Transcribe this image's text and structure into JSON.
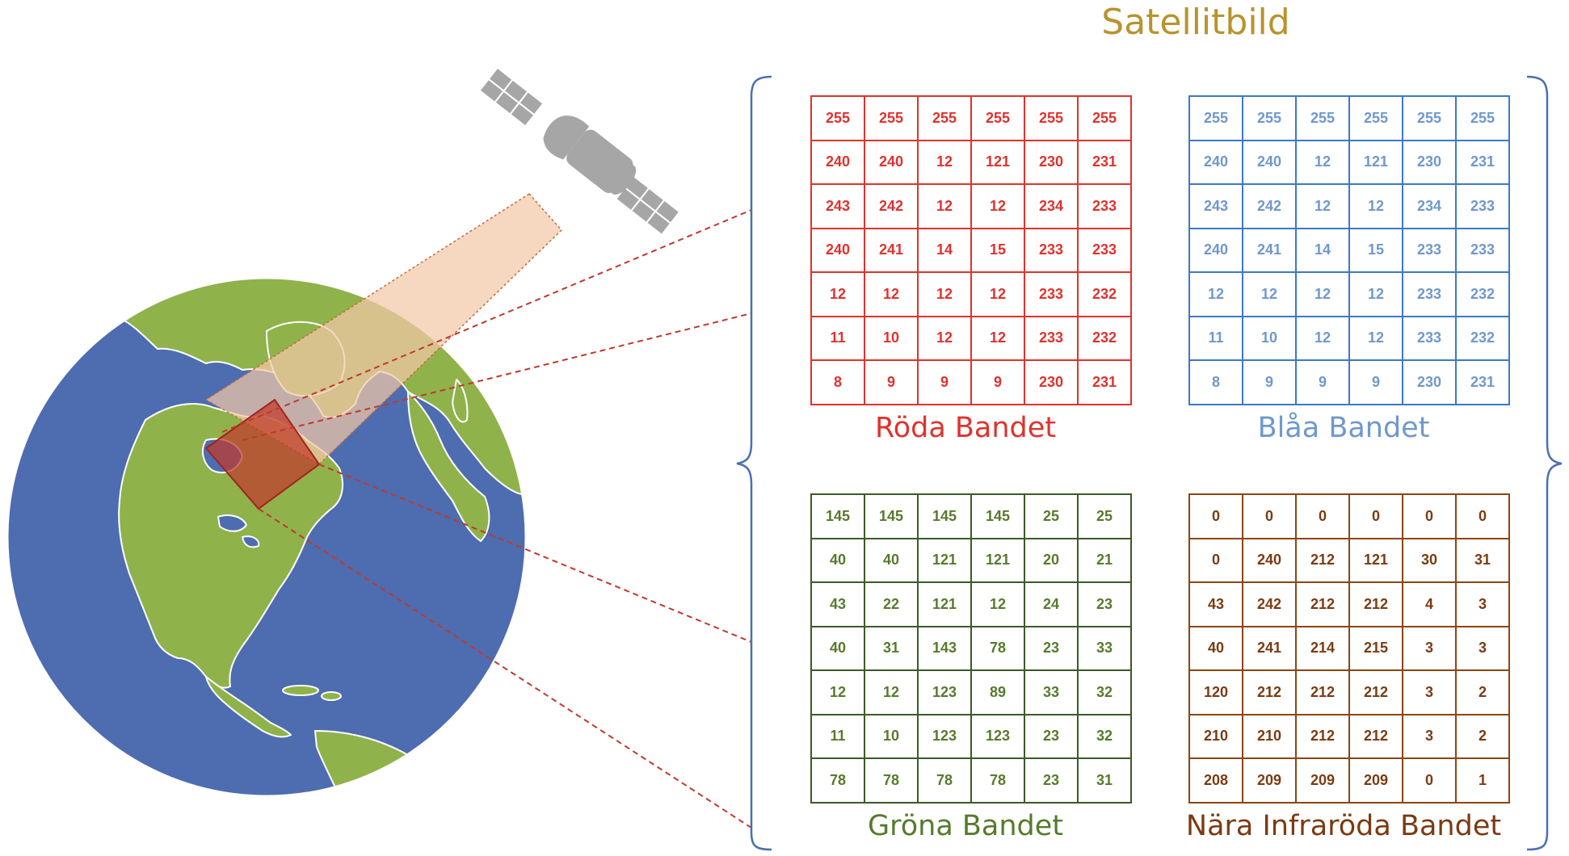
{
  "title": "Satellitbild",
  "icons": {
    "satellite": "satellite-icon",
    "globe": "earth-globe"
  },
  "colors": {
    "title": "#b8932e",
    "ocean": "#4e6cb0",
    "land": "#8fb24b",
    "beam": "#f2c8a8",
    "footprint": "#c0392b",
    "dashed_lines": "#c0392b",
    "satellite": "#a6a6a6"
  },
  "bands": [
    {
      "key": "red",
      "label": "Röda Bandet",
      "color": "#e0322d",
      "rows": [
        [
          "255",
          "255",
          "255",
          "255",
          "255",
          "255"
        ],
        [
          "240",
          "240",
          "12",
          "121",
          "230",
          "231"
        ],
        [
          "243",
          "242",
          "12",
          "12",
          "234",
          "233"
        ],
        [
          "240",
          "241",
          "14",
          "15",
          "233",
          "233"
        ],
        [
          "12",
          "12",
          "12",
          "12",
          "233",
          "232"
        ],
        [
          "11",
          "10",
          "12",
          "12",
          "233",
          "232"
        ],
        [
          "8",
          "9",
          "9",
          "9",
          "230",
          "231"
        ]
      ]
    },
    {
      "key": "blue",
      "label": "Blåa Bandet",
      "color": "#6f98cd",
      "grid_color": "#3d79c2",
      "rows": [
        [
          "255",
          "255",
          "255",
          "255",
          "255",
          "255"
        ],
        [
          "240",
          "240",
          "12",
          "121",
          "230",
          "231"
        ],
        [
          "243",
          "242",
          "12",
          "12",
          "234",
          "233"
        ],
        [
          "240",
          "241",
          "14",
          "15",
          "233",
          "233"
        ],
        [
          "12",
          "12",
          "12",
          "12",
          "233",
          "232"
        ],
        [
          "11",
          "10",
          "12",
          "12",
          "233",
          "232"
        ],
        [
          "8",
          "9",
          "9",
          "9",
          "230",
          "231"
        ]
      ]
    },
    {
      "key": "green",
      "label": "Gröna Bandet",
      "color": "#577a2d",
      "grid_color": "#3c5a27",
      "rows": [
        [
          "145",
          "145",
          "145",
          "145",
          "25",
          "25"
        ],
        [
          "40",
          "40",
          "121",
          "121",
          "20",
          "21"
        ],
        [
          "43",
          "22",
          "121",
          "12",
          "24",
          "23"
        ],
        [
          "40",
          "31",
          "143",
          "78",
          "23",
          "33"
        ],
        [
          "12",
          "12",
          "123",
          "89",
          "33",
          "32"
        ],
        [
          "11",
          "10",
          "123",
          "123",
          "23",
          "32"
        ],
        [
          "78",
          "78",
          "78",
          "78",
          "23",
          "31"
        ]
      ]
    },
    {
      "key": "nir",
      "label": "Nära Infraröda Bandet",
      "color": "#7a3b12",
      "grid_color": "#8b4513",
      "rows": [
        [
          "0",
          "0",
          "0",
          "0",
          "0",
          "0"
        ],
        [
          "0",
          "240",
          "212",
          "121",
          "30",
          "31"
        ],
        [
          "43",
          "242",
          "212",
          "212",
          "4",
          "3"
        ],
        [
          "40",
          "241",
          "214",
          "215",
          "3",
          "3"
        ],
        [
          "120",
          "212",
          "212",
          "212",
          "3",
          "2"
        ],
        [
          "210",
          "210",
          "212",
          "212",
          "3",
          "2"
        ],
        [
          "208",
          "209",
          "209",
          "209",
          "0",
          "1"
        ]
      ]
    }
  ]
}
